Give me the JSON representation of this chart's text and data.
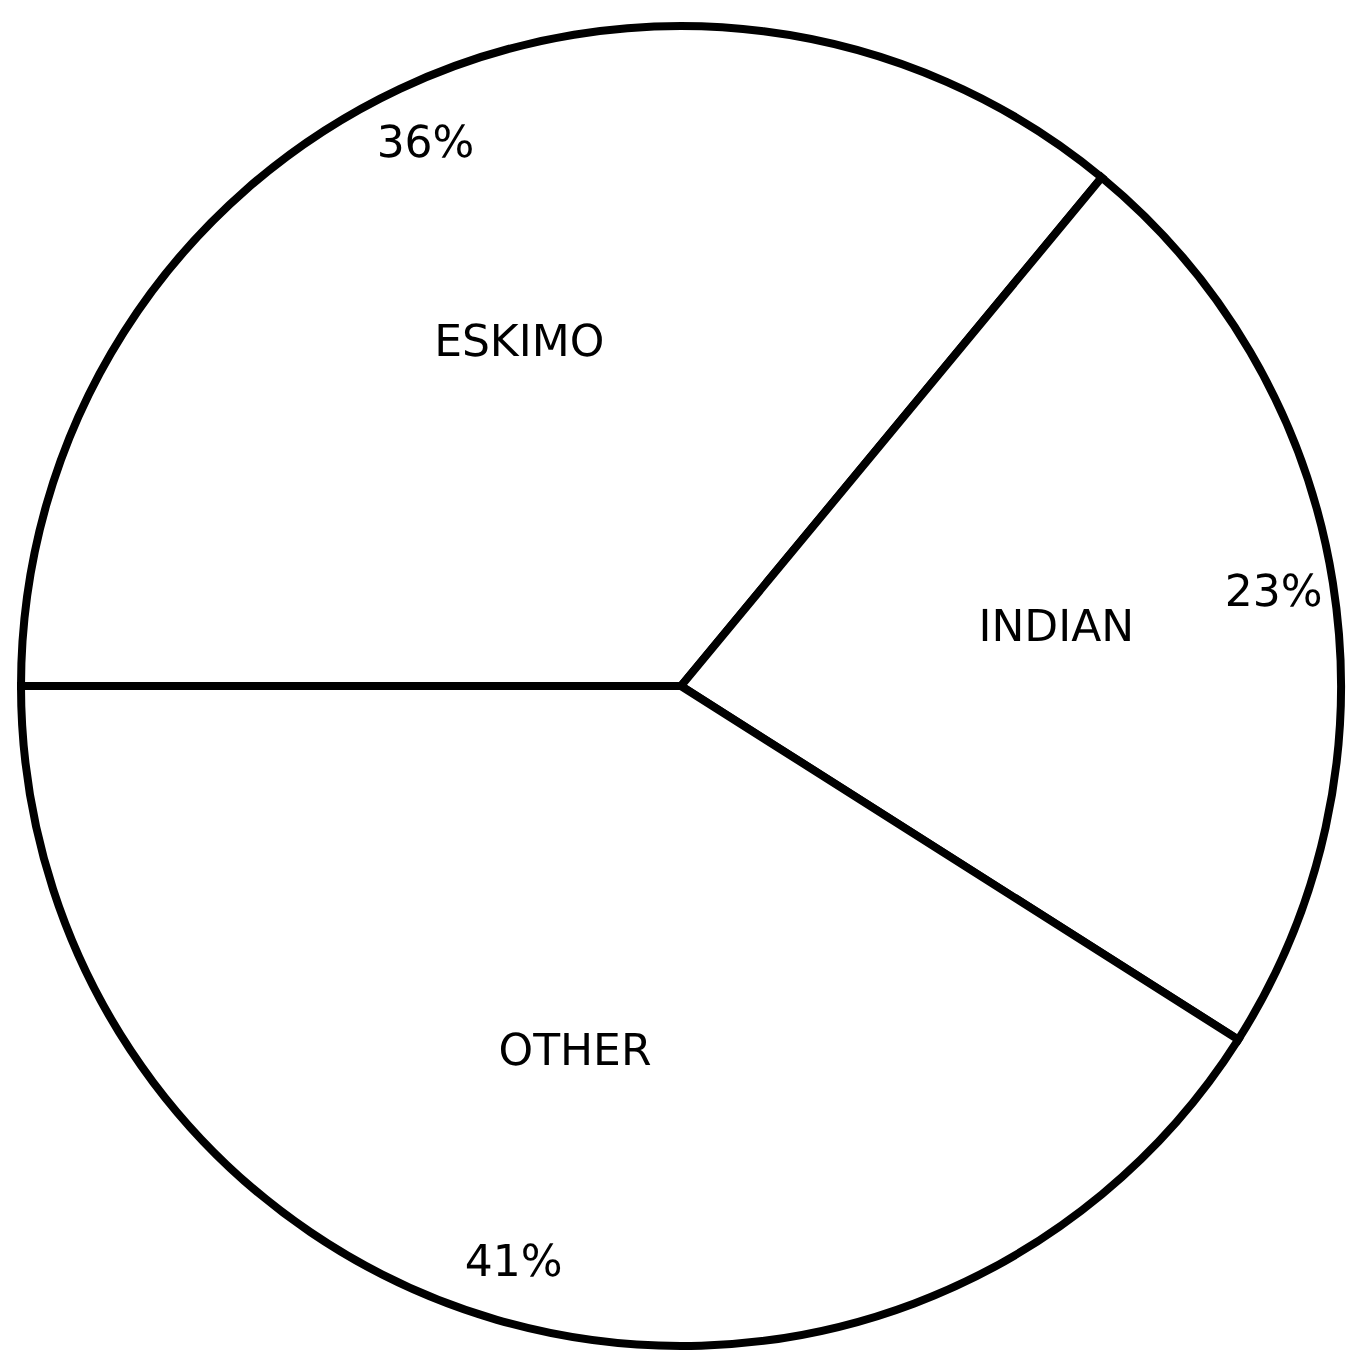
{
  "chart_data": {
    "type": "pie",
    "categories": [
      "ESKIMO",
      "INDIAN",
      "OTHER"
    ],
    "values": [
      36,
      23,
      41
    ],
    "value_labels": [
      "36%",
      "23%",
      "41%"
    ],
    "colors": [
      "#ffffff",
      "#ffffff",
      "#ffffff"
    ]
  }
}
